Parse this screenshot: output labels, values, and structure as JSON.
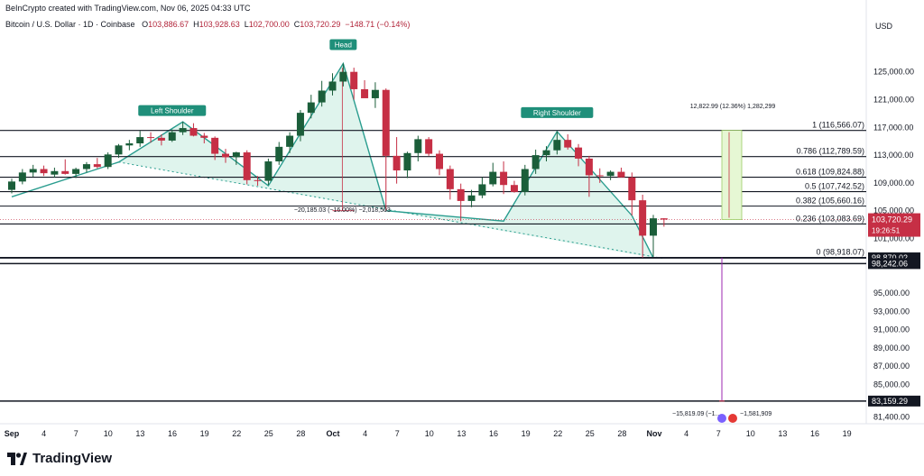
{
  "header": {
    "credit": "BeInCrypto created with TradingView.com, Nov 06, 2025 04:33 UTC",
    "symbol": "Bitcoin / U.S. Dollar · 1D · Coinbase",
    "open_label": "O",
    "open": "103,886.67",
    "high_label": "H",
    "high": "103,928.63",
    "low_label": "L",
    "low": "102,700.00",
    "close_label": "C",
    "close": "103,720.29",
    "change": "−148.71 (−0.14%)",
    "currency": "USD"
  },
  "brand": {
    "name": "TradingView",
    "logo_icon": "tradingview-logo-icon"
  },
  "colors": {
    "up": "#1b5e3a",
    "down": "#c62f45",
    "line": "#131722",
    "pattern_fill": "#d9f2ea",
    "pattern_line": "#2a9d8f",
    "pill_bg": "#1f8f7a",
    "target_fill": "#e6f7d4",
    "target_line": "#9ccc65",
    "drop_line": "#c62f45",
    "projection_line": "#9c27b0"
  },
  "chart_data": {
    "type": "candlestick",
    "title": "Bitcoin / U.S. Dollar · 1D · Coinbase",
    "y_axis": {
      "ticks": [
        "125,000.00",
        "121,000.00",
        "117,000.00",
        "113,000.00",
        "109,000.00",
        "105,000.00",
        "101,000.00",
        "95,000.00",
        "93,000.00",
        "91,000.00",
        "89,000.00",
        "87,000.00",
        "85,000.00",
        "81,400.00"
      ]
    },
    "x_axis": {
      "ticks": [
        "Sep",
        "4",
        "7",
        "10",
        "13",
        "16",
        "19",
        "22",
        "25",
        "28",
        "Oct",
        "4",
        "7",
        "10",
        "13",
        "16",
        "19",
        "22",
        "25",
        "28",
        "Nov",
        "4",
        "7",
        "10",
        "13",
        "16",
        "19"
      ]
    },
    "candles_note": "approximate daily OHLC read from chart (USD)",
    "candles": [
      [
        108000,
        109600,
        107500,
        109200
      ],
      [
        109200,
        111000,
        108800,
        110500
      ],
      [
        110500,
        111600,
        109900,
        111000
      ],
      [
        111000,
        111500,
        110000,
        110400
      ],
      [
        110200,
        111200,
        109800,
        110700
      ],
      [
        110700,
        112400,
        110200,
        110300
      ],
      [
        110300,
        111200,
        109700,
        111000
      ],
      [
        111000,
        112000,
        110500,
        111700
      ],
      [
        111700,
        112600,
        111100,
        111300
      ],
      [
        111300,
        113400,
        111000,
        113100
      ],
      [
        113100,
        114600,
        112600,
        114400
      ],
      [
        114400,
        115200,
        113700,
        114700
      ],
      [
        114700,
        116500,
        114200,
        115600
      ],
      [
        115600,
        116300,
        114800,
        115500
      ],
      [
        115500,
        116000,
        114400,
        115100
      ],
      [
        115100,
        116700,
        114900,
        116300
      ],
      [
        116300,
        117800,
        115900,
        116900
      ],
      [
        116900,
        117600,
        115700,
        115800
      ],
      [
        115800,
        116200,
        114700,
        115500
      ],
      [
        115500,
        115700,
        112300,
        113200
      ],
      [
        113200,
        113900,
        111900,
        112700
      ],
      [
        112700,
        113500,
        111600,
        113400
      ],
      [
        113400,
        113700,
        108800,
        109400
      ],
      [
        109400,
        110000,
        108600,
        109300
      ],
      [
        109300,
        112500,
        108700,
        112100
      ],
      [
        112100,
        114900,
        111600,
        114200
      ],
      [
        114200,
        116300,
        113300,
        115800
      ],
      [
        115800,
        119500,
        115000,
        119100
      ],
      [
        119100,
        121700,
        118300,
        120600
      ],
      [
        120600,
        123700,
        120000,
        122300
      ],
      [
        122300,
        124800,
        121600,
        123600
      ],
      [
        123600,
        126200,
        122900,
        125000
      ],
      [
        125000,
        125600,
        121000,
        122500
      ],
      [
        122500,
        123800,
        121300,
        121200
      ],
      [
        121200,
        123500,
        119800,
        122400
      ],
      [
        122400,
        122600,
        105000,
        112900
      ],
      [
        112900,
        115600,
        108900,
        110800
      ],
      [
        110800,
        113500,
        109700,
        113300
      ],
      [
        113300,
        115800,
        112100,
        115300
      ],
      [
        115300,
        115600,
        112900,
        113200
      ],
      [
        113200,
        113700,
        110100,
        111000
      ],
      [
        111000,
        111500,
        106600,
        108100
      ],
      [
        108100,
        108900,
        103500,
        106400
      ],
      [
        106400,
        108000,
        105500,
        107200
      ],
      [
        107200,
        109800,
        106800,
        108800
      ],
      [
        108800,
        111900,
        108500,
        110600
      ],
      [
        110600,
        112100,
        107400,
        108700
      ],
      [
        108700,
        109300,
        107600,
        107700
      ],
      [
        107700,
        111600,
        107200,
        111000
      ],
      [
        111000,
        113800,
        110300,
        113000
      ],
      [
        113000,
        114300,
        112100,
        113700
      ],
      [
        113700,
        116400,
        113100,
        115200
      ],
      [
        115200,
        116000,
        113800,
        114100
      ],
      [
        114100,
        114600,
        111400,
        112500
      ],
      [
        112500,
        112900,
        107000,
        110100
      ],
      [
        110100,
        111100,
        109000,
        110000
      ],
      [
        110000,
        110800,
        109400,
        110600
      ],
      [
        110600,
        111200,
        109800,
        109800
      ],
      [
        109800,
        110500,
        104300,
        106500
      ],
      [
        106500,
        107300,
        98900,
        101400
      ],
      [
        101400,
        104400,
        99000,
        103900
      ],
      [
        103900,
        103930,
        102700,
        103720
      ]
    ],
    "levels": [
      {
        "label": "1 (116,566.07)",
        "value": 116566.07
      },
      {
        "label": "0.786 (112,789.59)",
        "value": 112789.59
      },
      {
        "label": "0.618 (109,824.88)",
        "value": 109824.88
      },
      {
        "label": "0.5 (107,742.52)",
        "value": 107742.52
      },
      {
        "label": "0.382 (105,660.16)",
        "value": 105660.16
      },
      {
        "label": "0.236 (103,083.69)",
        "value": 103083.69
      },
      {
        "label": "0 (98,918.07)",
        "value": 98918.07
      }
    ],
    "price_tags": [
      {
        "text": "103,720.29",
        "sub": "19:26:51",
        "value": 103720.29,
        "style": "current"
      },
      {
        "text": "98,870.02",
        "value": 98870.02,
        "style": "dark"
      },
      {
        "text": "98,242.06",
        "value": 98242.06,
        "style": "dark"
      },
      {
        "text": "83,159.29",
        "value": 83159.29,
        "style": "dark"
      }
    ],
    "horizontal_lines": [
      116566.07,
      112789.59,
      109824.88,
      107742.52,
      105660.16,
      103083.69,
      98918.07,
      98870.02,
      98242.06,
      83159.29
    ],
    "pattern_labels": [
      {
        "text": "Left Shoulder",
        "index": 15
      },
      {
        "text": "Head",
        "index": 31
      },
      {
        "text": "Right Shoulder",
        "index": 51
      }
    ],
    "annotations": {
      "head_drop": "−20,185.03 (−16.00%) −2,018,503",
      "target_box": "12,822.99 (12.36%) 1,282,299",
      "projection": "−15,819.09 (−1…",
      "projection_tail": "−1,581,909"
    },
    "current_price": 103720.29
  }
}
